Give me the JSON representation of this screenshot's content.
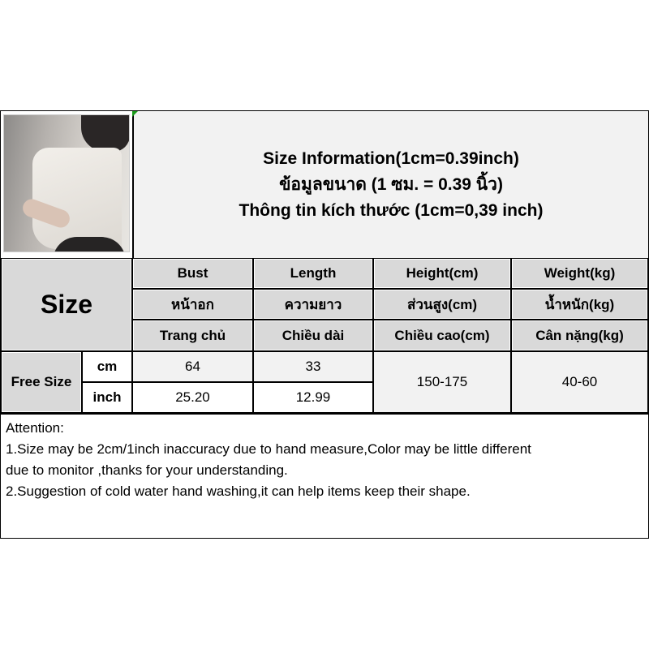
{
  "title_lines": [
    "Size Information(1cm=0.39inch)",
    "ข้อมูลขนาด (1 ซม. = 0.39 นิ้ว)",
    "Thông tin kích thước (1cm=0,39 inch)"
  ],
  "size_label": "Size",
  "columns": [
    {
      "en": "Bust",
      "th": "หน้าอก",
      "vi": "Trang chủ"
    },
    {
      "en": "Length",
      "th": "ความยาว",
      "vi": "Chiều dài"
    },
    {
      "en": "Height(cm)",
      "th": "ส่วนสูง(cm)",
      "vi": "Chiều cao(cm)"
    },
    {
      "en": "Weight(kg)",
      "th": "น้ำหนัก(kg)",
      "vi": "Cân nặng(kg)"
    }
  ],
  "rows": {
    "size_name": "Free Size",
    "cm": {
      "unit": "cm",
      "bust": "64",
      "length": "33"
    },
    "inch": {
      "unit": "inch",
      "bust": "25.20",
      "length": "12.99"
    },
    "height": "150-175",
    "weight": "40-60"
  },
  "attention": {
    "heading": "Attention:",
    "line1": "1.Size may be 2cm/1inch inaccuracy due to hand measure,Color may be little different\ndue to monitor ,thanks for your understanding.",
    "line2": "2.Suggestion of cold water hand washing,it can help items keep their shape."
  }
}
